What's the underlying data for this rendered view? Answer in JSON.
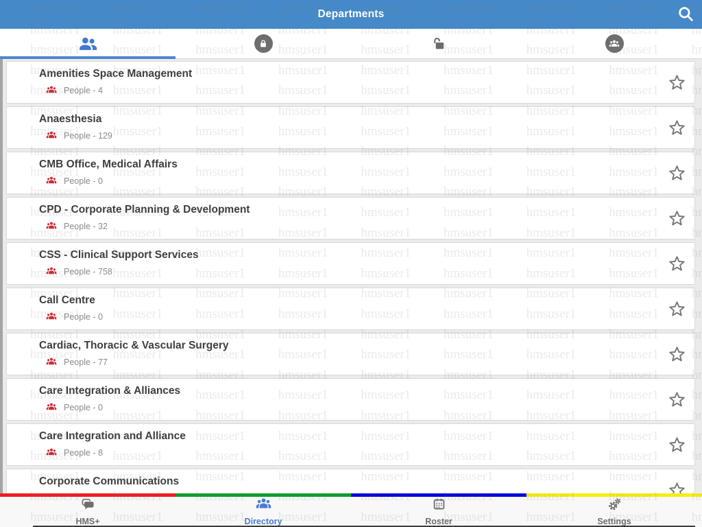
{
  "header": {
    "title": "Departments",
    "bg_color": "#4589c8"
  },
  "tabs": [
    {
      "id": "people",
      "icon": "people-icon",
      "active": true
    },
    {
      "id": "lock-closed",
      "icon": "lock-closed-icon",
      "active": false
    },
    {
      "id": "lock-open",
      "icon": "lock-open-icon",
      "active": false
    },
    {
      "id": "group-circle",
      "icon": "people-circle-icon",
      "active": false
    }
  ],
  "departments": [
    {
      "name": "Amenities Space Management",
      "people": "People - 4"
    },
    {
      "name": "Anaesthesia",
      "people": "People - 129"
    },
    {
      "name": "CMB Office, Medical Affairs",
      "people": "People - 0"
    },
    {
      "name": "CPD - Corporate Planning & Development",
      "people": "People - 32"
    },
    {
      "name": "CSS - Clinical Support Services",
      "people": "People - 758"
    },
    {
      "name": "Call Centre",
      "people": "People - 0"
    },
    {
      "name": "Cardiac, Thoracic & Vascular Surgery",
      "people": "People - 77"
    },
    {
      "name": "Care Integration & Alliances",
      "people": "People - 0"
    },
    {
      "name": "Care Integration and Alliance",
      "people": "People - 8"
    },
    {
      "name": "Corporate Communications",
      "people": ""
    }
  ],
  "bottom_nav": {
    "items": [
      {
        "label": "HMS+",
        "icon": "chat-icon",
        "stripe": "#ef1d23",
        "active": false
      },
      {
        "label": "Directory",
        "icon": "people-icon",
        "stripe": "#0b9e2c",
        "active": true
      },
      {
        "label": "Roster",
        "icon": "calendar-icon",
        "stripe": "#0402e0",
        "active": false
      },
      {
        "label": "Settings",
        "icon": "gears-icon",
        "stripe": "#f5ee11",
        "active": false
      }
    ],
    "active_color": "#4a7cd1",
    "inactive_color": "#6e6e6e"
  },
  "colors": {
    "header_blue": "#4589c8",
    "accent_blue": "#4a86d2",
    "people_red": "#cd2a31",
    "star_gray": "#767676"
  },
  "watermark": {
    "text": "hmsuser1"
  }
}
